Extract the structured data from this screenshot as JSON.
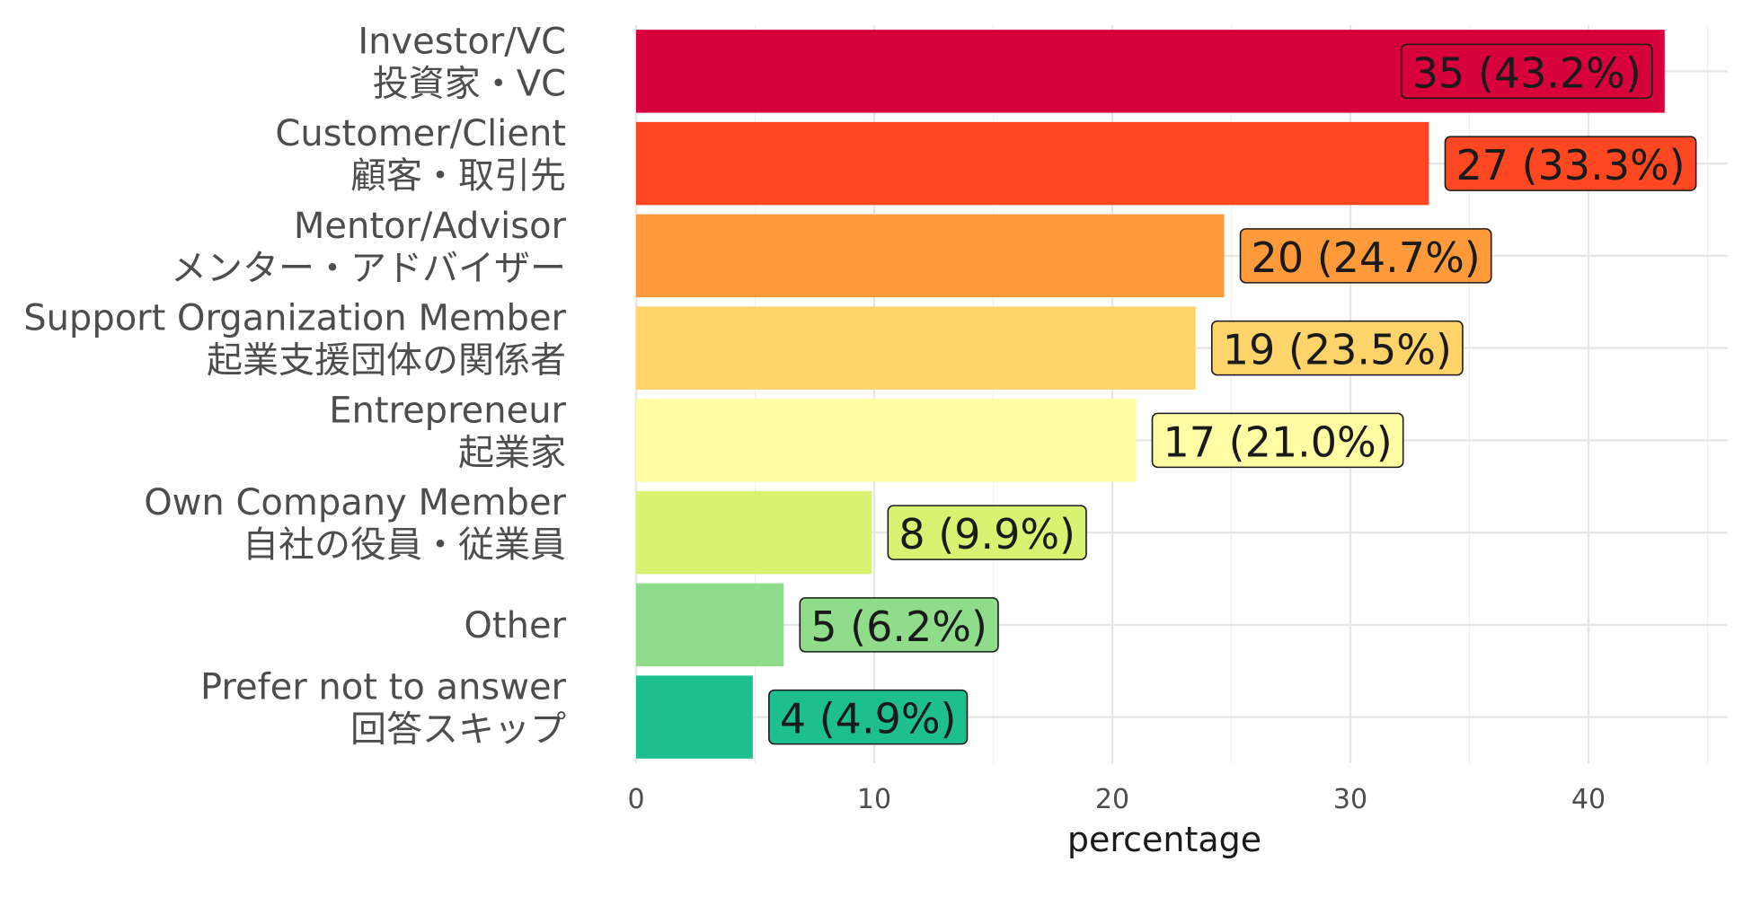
{
  "chart_data": {
    "type": "bar",
    "orientation": "horizontal",
    "xlabel": "percentage",
    "ylabel": "",
    "xlim": [
      0,
      45
    ],
    "x_ticks": [
      0,
      10,
      20,
      30,
      40
    ],
    "grid": true,
    "legend": "none",
    "categories": [
      {
        "label_en": "Investor/VC",
        "label_ja": "投資家・VC",
        "count": 35,
        "percentage": 43.2,
        "data_label": "35 (43.2%)",
        "color": "#D7003A"
      },
      {
        "label_en": "Customer/Client",
        "label_ja": "顧客・取引先",
        "count": 27,
        "percentage": 33.3,
        "data_label": "27 (33.3%)",
        "color": "#FF4822"
      },
      {
        "label_en": "Mentor/Advisor",
        "label_ja": "メンター・アドバイザー",
        "count": 20,
        "percentage": 24.7,
        "data_label": "20 (24.7%)",
        "color": "#FF9A3B"
      },
      {
        "label_en": "Support Organization Member",
        "label_ja": "起業支援団体の関係者",
        "count": 19,
        "percentage": 23.5,
        "data_label": "19 (23.5%)",
        "color": "#FFD56B"
      },
      {
        "label_en": "Entrepreneur",
        "label_ja": "起業家",
        "count": 17,
        "percentage": 21.0,
        "data_label": "17 (21.0%)",
        "color": "#FFFCA4"
      },
      {
        "label_en": "Own Company Member",
        "label_ja": "自社の役員・従業員",
        "count": 8,
        "percentage": 9.9,
        "data_label": "8 (9.9%)",
        "color": "#D9F272"
      },
      {
        "label_en": "Other",
        "label_ja": "",
        "count": 5,
        "percentage": 6.2,
        "data_label": "5 (6.2%)",
        "color": "#8FDD8A"
      },
      {
        "label_en": "Prefer not to answer",
        "label_ja": "回答スキップ",
        "count": 4,
        "percentage": 4.9,
        "data_label": "4 (4.9%)",
        "color": "#1DBF8E"
      }
    ]
  }
}
